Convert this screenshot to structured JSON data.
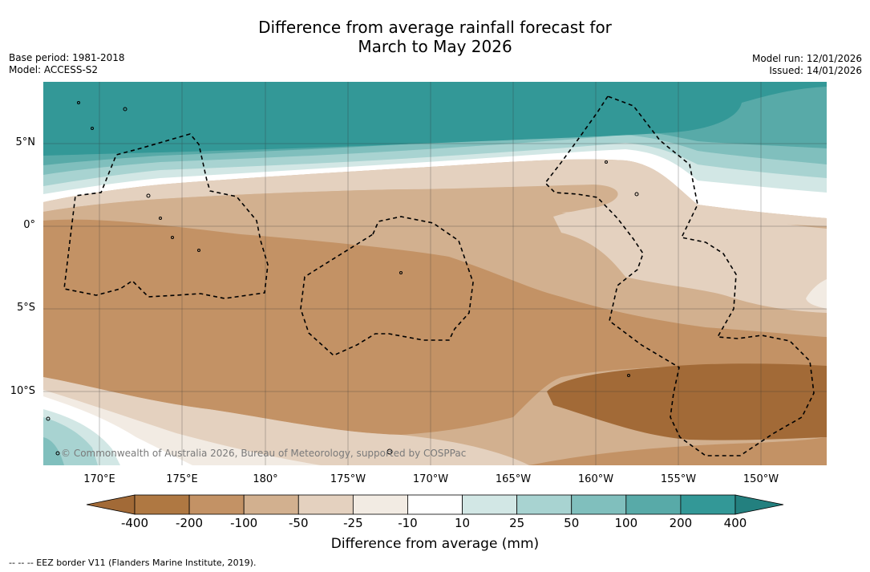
{
  "title": {
    "line1": "Difference from average rainfall forecast for",
    "line2": "March to May 2026"
  },
  "meta": {
    "base_period": "Base period: 1981-2018",
    "model": "Model: ACCESS-S2",
    "model_run": "Model run: 12/01/2026",
    "issued": "Issued: 14/01/2026"
  },
  "copyright": "© Commonwealth of Australia 2026, Bureau of Meteorology, supported by COSPPac",
  "longitude_labels": [
    "170°E",
    "175°E",
    "180°",
    "175°W",
    "170°W",
    "165°W",
    "160°W",
    "155°W",
    "150°W"
  ],
  "latitude_labels": [
    "5°N",
    "0°",
    "5°S",
    "10°S"
  ],
  "colorbar": {
    "tick_labels": [
      "-400",
      "-200",
      "-100",
      "-50",
      "-25",
      "-10",
      "10",
      "25",
      "50",
      "100",
      "200",
      "400"
    ],
    "colors": [
      "#a26a37",
      "#af7842",
      "#c39265",
      "#d2b08f",
      "#e4d1bf",
      "#f2ebe3",
      "#ffffff",
      "#d2e7e5",
      "#a8d3d1",
      "#80bfbd",
      "#58aaa8",
      "#339897",
      "#23807f"
    ],
    "title": "Difference from average (mm)"
  },
  "legend_note": "--  --  -- EEZ border V11 (Flanders Marine Institute, 2019).",
  "map_layers": {
    "land": "island-outlines",
    "borders": "eez-dashed"
  }
}
